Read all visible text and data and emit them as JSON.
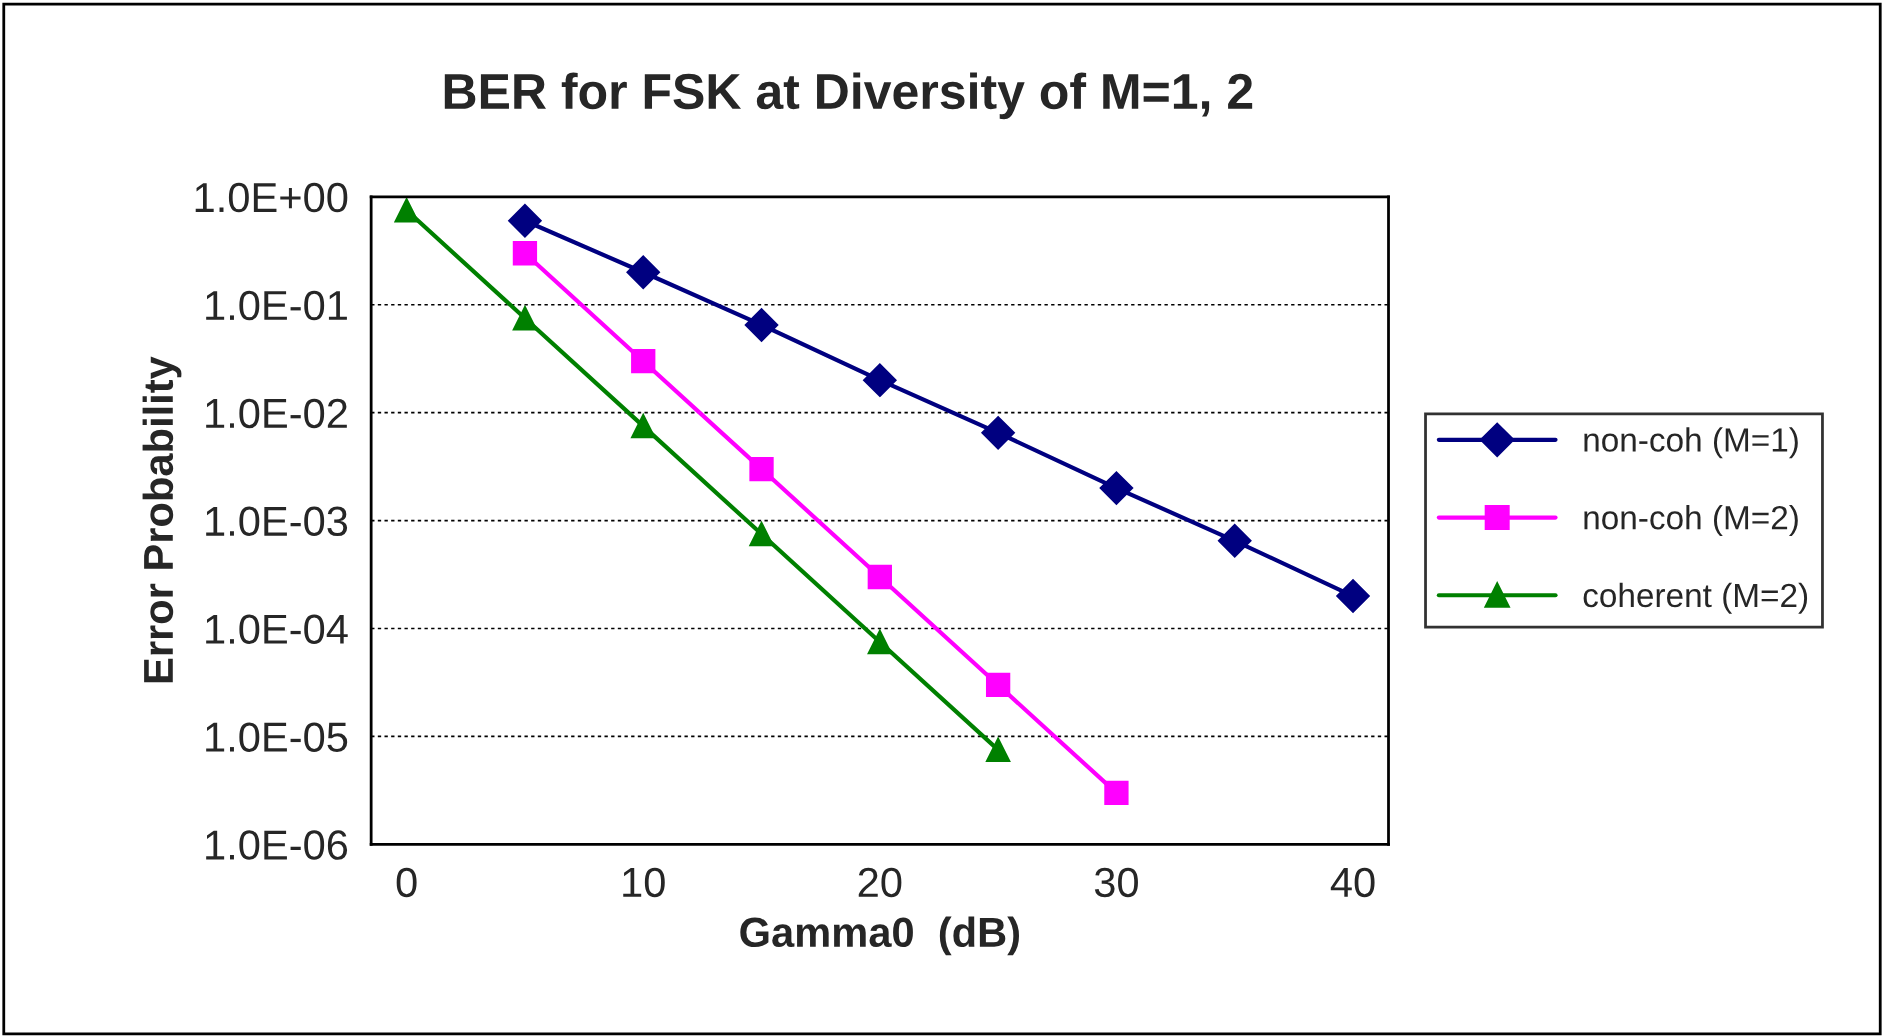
{
  "chart_data": {
    "type": "line",
    "title": "BER for FSK at Diversity of M=1, 2",
    "xlabel": "Gamma0  (dB)",
    "ylabel": "Error Probability",
    "series": [
      {
        "name": "non-coh (M=1)",
        "color": "#000080",
        "marker": "diamond",
        "x": [
          5,
          10,
          15,
          20,
          25,
          30,
          35,
          40
        ],
        "values": [
          0.6,
          0.2,
          0.065,
          0.02,
          0.0065,
          0.002,
          0.00065,
          0.0002
        ]
      },
      {
        "name": "non-coh (M=2)",
        "color": "#ff00ff",
        "marker": "square",
        "x": [
          5,
          10,
          15,
          20,
          25,
          30
        ],
        "values": [
          0.3,
          0.03,
          0.003,
          0.0003,
          3e-05,
          3e-06
        ]
      },
      {
        "name": "coherent (M=2)",
        "color": "#008000",
        "marker": "triangle",
        "x": [
          0,
          5,
          10,
          15,
          20,
          25
        ],
        "values": [
          0.75,
          0.075,
          0.0075,
          0.00075,
          7.5e-05,
          7.5e-06
        ]
      }
    ],
    "log": "y",
    "xlim": [
      -1.5,
      41.5
    ],
    "xticks": [
      0,
      10,
      20,
      30,
      40
    ],
    "ylim": [
      1e-06,
      1
    ],
    "yticks": [
      {
        "value": 1,
        "label": "1.0E+00"
      },
      {
        "value": 0.1,
        "label": "1.0E-01"
      },
      {
        "value": 0.01,
        "label": "1.0E-02"
      },
      {
        "value": 0.001,
        "label": "1.0E-03"
      },
      {
        "value": 0.0001,
        "label": "1.0E-04"
      },
      {
        "value": 1e-05,
        "label": "1.0E-05"
      },
      {
        "value": 1e-06,
        "label": "1.0E-06"
      }
    ],
    "grid": "y",
    "legend": "right"
  }
}
